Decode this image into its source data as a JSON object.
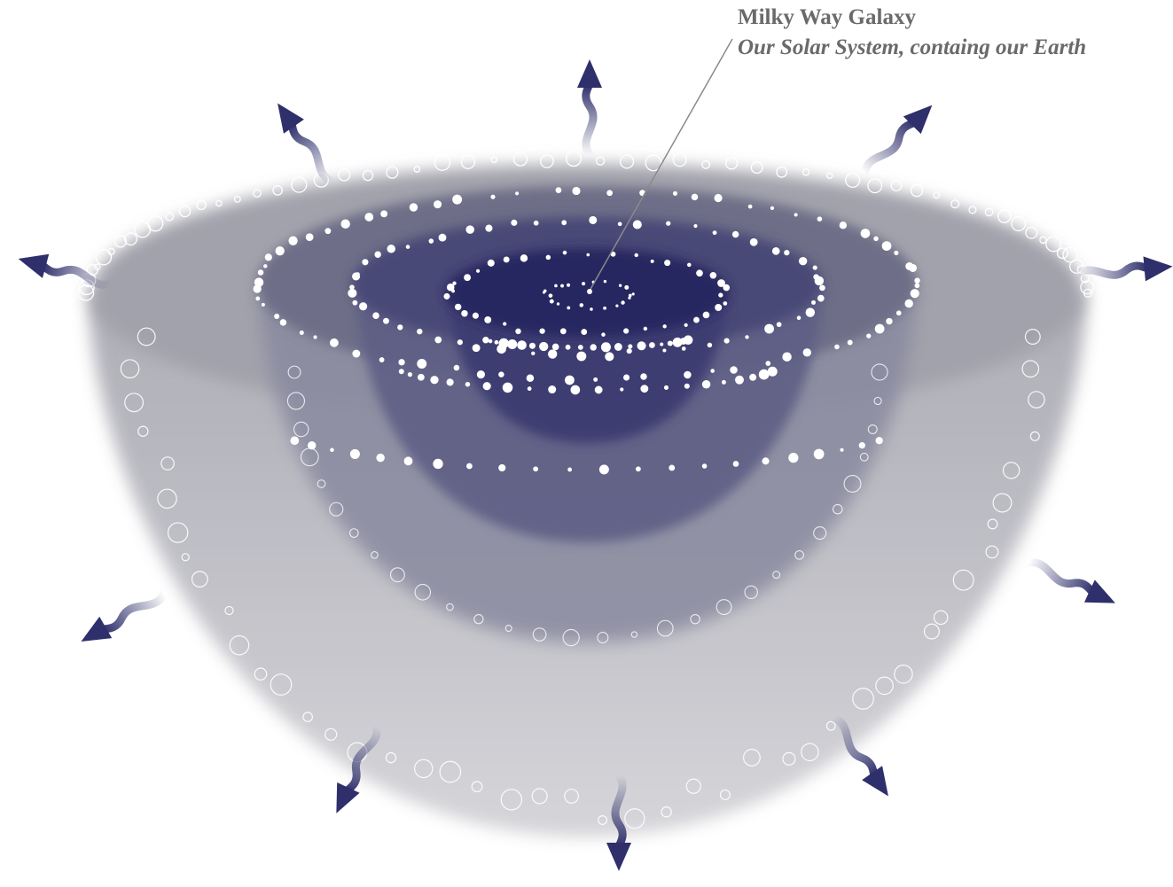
{
  "labels": {
    "title": "Milky Way Galaxy",
    "subtitle": "Our Solar System, containg our Earth"
  },
  "colors": {
    "outer_shell": "#b9b9c1",
    "outer_shell_top": "#9e9ea8",
    "middle_shell": "#6b6b86",
    "inner_shell": "#4b4a78",
    "core": "#2a2a62",
    "arrow": "#2e2f6b",
    "star": "#ffffff",
    "leader_line": "#8a8a8a",
    "text": "#6a6a6a"
  },
  "icons": {
    "arrows": "wavy-arrow-icon",
    "stars": "star-dot-icon",
    "bubbles": "bubble-icon",
    "earth_marker": "earth-marker-icon"
  }
}
